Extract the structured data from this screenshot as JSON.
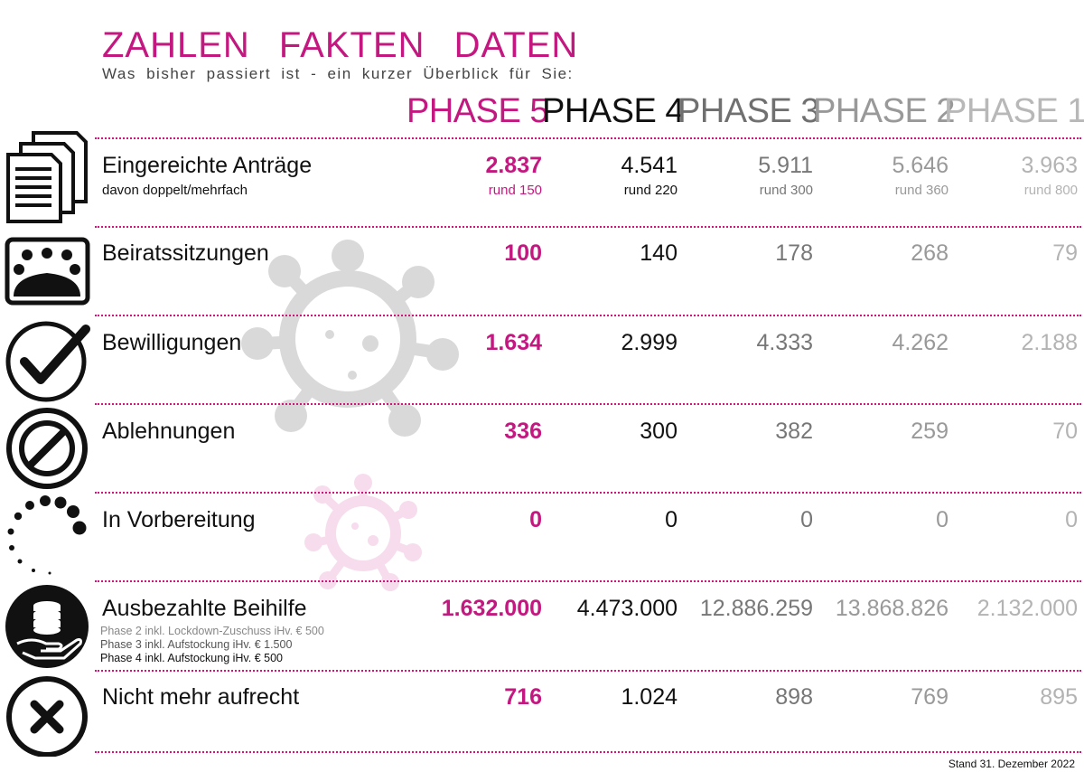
{
  "header": {
    "title": "ZAHLEN FAKTEN DATEN",
    "subtitle": "Was bisher passiert ist - ein kurzer Überblick für Sie:"
  },
  "phases": [
    "PHASE 5",
    "PHASE 4",
    "PHASE 3",
    "PHASE 2",
    "PHASE 1"
  ],
  "colors": {
    "accent": "#c2187f",
    "separator": "#d1137c",
    "phase4": "#111111",
    "phase3": "#777777",
    "phase2": "#999999",
    "phase1": "#b3b3b3"
  },
  "rows": [
    {
      "icon": "documents-icon",
      "label": "Eingereichte Anträge",
      "sublabel": "davon doppelt/mehrfach",
      "values": [
        "2.837",
        "4.541",
        "5.911",
        "5.646",
        "3.963"
      ],
      "subvalues": [
        "rund 150",
        "rund 220",
        "rund 300",
        "rund 360",
        "rund 800"
      ]
    },
    {
      "icon": "meeting-icon",
      "label": "Beiratssitzungen",
      "values": [
        "100",
        "140",
        "178",
        "268",
        "79"
      ]
    },
    {
      "icon": "checkmark-icon",
      "label": "Bewilligungen",
      "values": [
        "1.634",
        "2.999",
        "4.333",
        "4.262",
        "2.188"
      ]
    },
    {
      "icon": "prohibited-icon",
      "label": "Ablehnungen",
      "values": [
        "336",
        "300",
        "382",
        "259",
        "70"
      ]
    },
    {
      "icon": "loading-icon",
      "label": "In Vorbereitung",
      "values": [
        "0",
        "0",
        "0",
        "0",
        "0"
      ]
    },
    {
      "icon": "coins-hand-icon",
      "label": "Ausbezahlte Beihilfe",
      "values": [
        "1.632.000",
        "4.473.000",
        "12.886.259",
        "13.868.826",
        "2.132.000"
      ],
      "notes": [
        "Phase 2 inkl. Lockdown-Zuschuss iHv. € 500",
        "Phase 3 inkl. Aufstockung iHv. € 1.500",
        "Phase 4 inkl. Aufstockung iHv. € 500"
      ]
    },
    {
      "icon": "close-circle-icon",
      "label": "Nicht mehr aufrecht",
      "values": [
        "716",
        "1.024",
        "898",
        "769",
        "895"
      ]
    }
  ],
  "footer": {
    "stand": "Stand 31. Dezember 2022"
  }
}
